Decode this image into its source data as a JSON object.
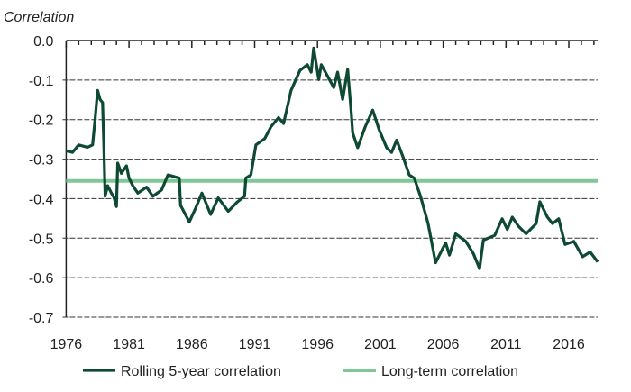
{
  "chart_data": {
    "type": "line",
    "ylabel": "Correlation",
    "ylim": [
      -0.7,
      0.0
    ],
    "xlim": [
      1976,
      2018.3
    ],
    "yticks": [
      "0.0",
      "-0.1",
      "-0.2",
      "-0.3",
      "-0.4",
      "-0.5",
      "-0.6",
      "-0.7"
    ],
    "xticks": [
      "1976",
      "1981",
      "1986",
      "1991",
      "1996",
      "2001",
      "2006",
      "2011",
      "2016"
    ],
    "grid": "horizontal dashed",
    "legend_position": "bottom",
    "series": [
      {
        "name": "Rolling 5-year correlation",
        "color": "#0e4a33",
        "x": [
          1976.0,
          1976.5,
          1977.0,
          1977.7,
          1978.1,
          1978.3,
          1978.5,
          1978.7,
          1978.9,
          1979.0,
          1979.1,
          1979.3,
          1979.6,
          1979.8,
          1980.0,
          1980.1,
          1980.4,
          1980.8,
          1981.0,
          1981.3,
          1981.7,
          1982.4,
          1982.9,
          1983.6,
          1984.1,
          1985.0,
          1985.1,
          1985.8,
          1986.3,
          1986.8,
          1987.5,
          1988.1,
          1988.9,
          1989.6,
          1990.2,
          1990.3,
          1990.7,
          1991.1,
          1991.8,
          1992.3,
          1992.9,
          1993.3,
          1993.9,
          1994.6,
          1995.2,
          1995.5,
          1995.7,
          1996.1,
          1996.3,
          1997.3,
          1997.6,
          1998.0,
          1998.4,
          1998.7,
          1998.8,
          1999.2,
          1999.8,
          2000.4,
          2000.9,
          2001.5,
          2001.9,
          2002.3,
          2002.8,
          2003.3,
          2003.7,
          2004.2,
          2004.8,
          2005.4,
          2006.0,
          2006.2,
          2006.5,
          2007.0,
          2007.8,
          2008.4,
          2008.9,
          2009.2,
          2010.1,
          2010.7,
          2011.1,
          2011.5,
          2012.0,
          2012.6,
          2013.4,
          2013.7,
          2014.3,
          2014.7,
          2015.2,
          2015.7,
          2016.4,
          2017.1,
          2017.7,
          2018.3
        ],
        "y": [
          -0.279,
          -0.283,
          -0.264,
          -0.27,
          -0.264,
          -0.199,
          -0.126,
          -0.149,
          -0.157,
          -0.264,
          -0.394,
          -0.367,
          -0.386,
          -0.397,
          -0.42,
          -0.31,
          -0.336,
          -0.317,
          -0.348,
          -0.367,
          -0.386,
          -0.371,
          -0.394,
          -0.378,
          -0.34,
          -0.348,
          -0.417,
          -0.459,
          -0.424,
          -0.386,
          -0.44,
          -0.398,
          -0.432,
          -0.409,
          -0.394,
          -0.348,
          -0.34,
          -0.264,
          -0.248,
          -0.218,
          -0.195,
          -0.21,
          -0.126,
          -0.076,
          -0.061,
          -0.08,
          -0.019,
          -0.099,
          -0.061,
          -0.119,
          -0.08,
          -0.149,
          -0.073,
          -0.187,
          -0.233,
          -0.271,
          -0.218,
          -0.176,
          -0.225,
          -0.271,
          -0.283,
          -0.252,
          -0.294,
          -0.34,
          -0.348,
          -0.394,
          -0.463,
          -0.562,
          -0.524,
          -0.512,
          -0.543,
          -0.489,
          -0.508,
          -0.539,
          -0.577,
          -0.505,
          -0.493,
          -0.451,
          -0.478,
          -0.447,
          -0.47,
          -0.489,
          -0.463,
          -0.408,
          -0.447,
          -0.463,
          -0.451,
          -0.516,
          -0.508,
          -0.547,
          -0.535,
          -0.56
        ]
      },
      {
        "name": "Long-term correlation",
        "color": "#7fc796",
        "value": -0.355
      }
    ]
  }
}
